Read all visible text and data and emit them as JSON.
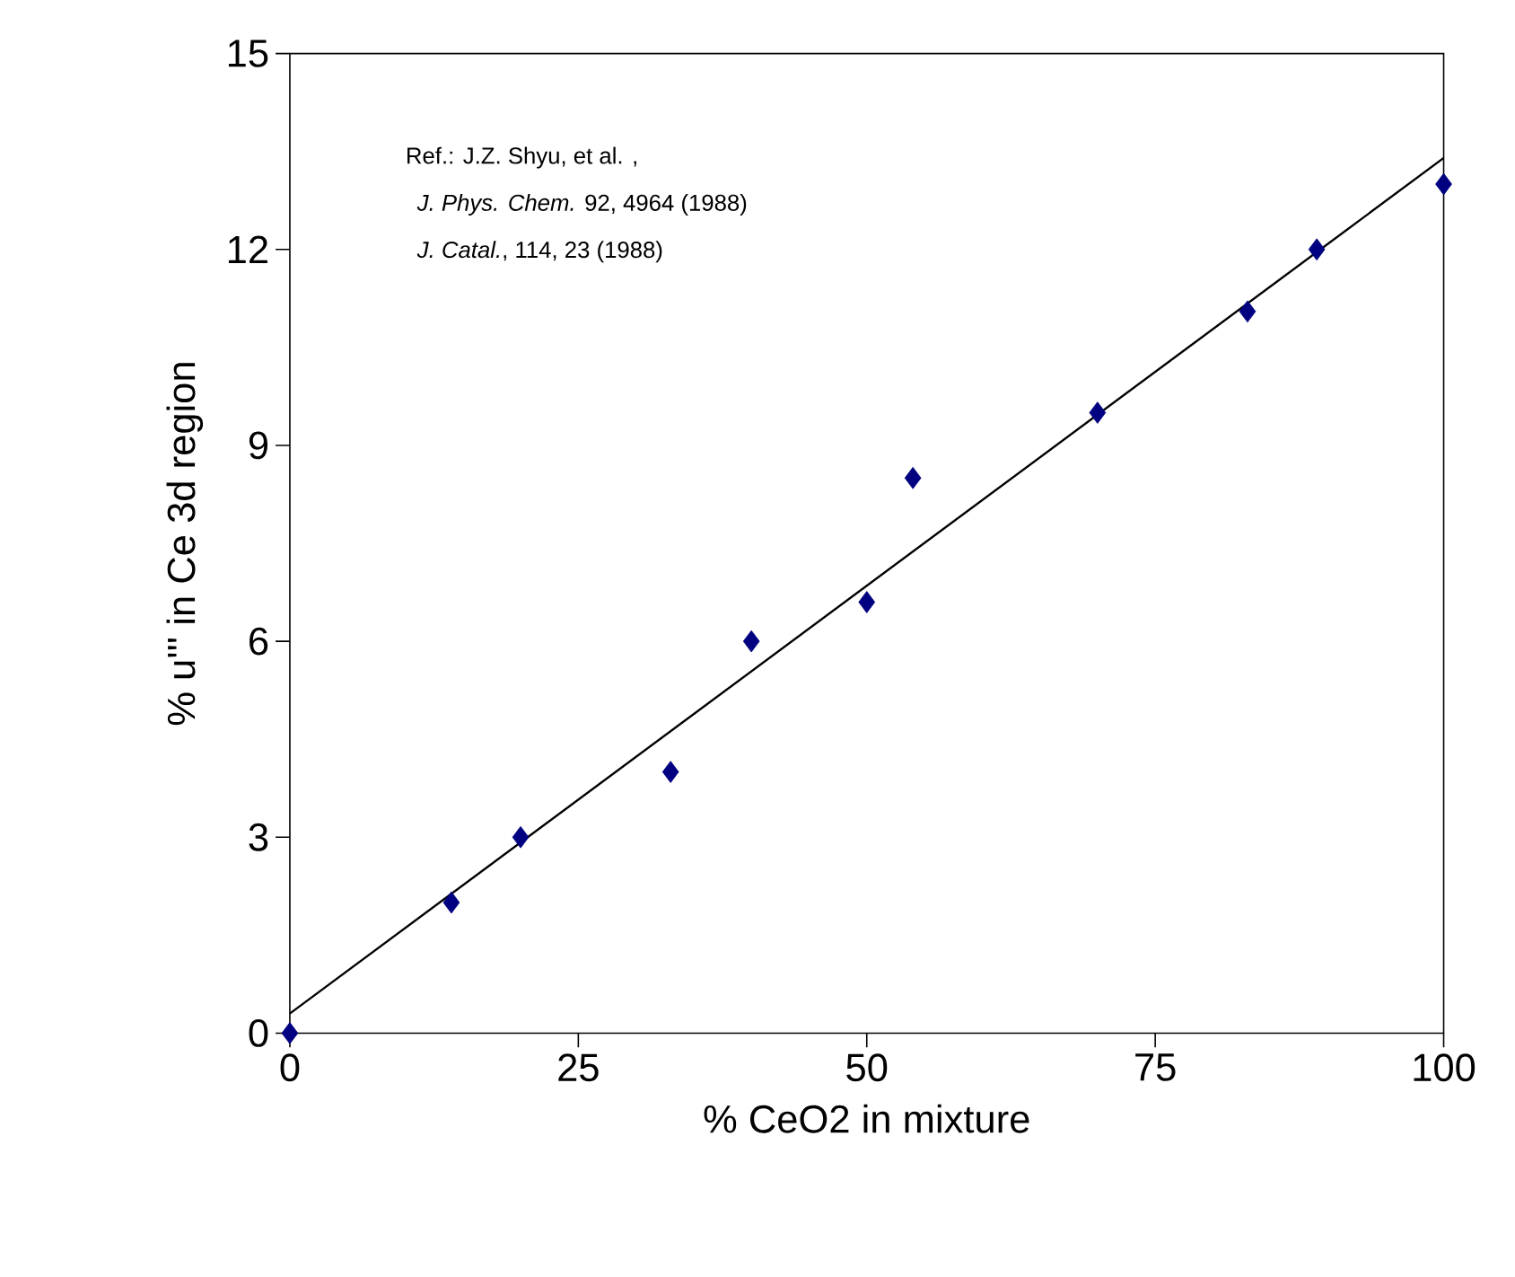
{
  "chart_data": {
    "type": "scatter",
    "xlabel": "% CeO2 in mixture",
    "ylabel": "% u''' in Ce 3d region",
    "xlim": [
      0,
      100
    ],
    "ylim": [
      0,
      15
    ],
    "xticks": [
      0,
      25,
      50,
      75,
      100
    ],
    "yticks": [
      0,
      3,
      6,
      9,
      12,
      15
    ],
    "grid": false,
    "marker": "diamond",
    "annotations": [
      "Ref.:  J.Z. Shyu, et al. ,",
      "*J. Phys. Chem.* 92, 4964 (1988)",
      "*J. Catal.*, 114, 23 (1988)"
    ],
    "series": [
      {
        "color": "#000080",
        "x": [
          0,
          14,
          20,
          33,
          40,
          50,
          54,
          70,
          83,
          89,
          100
        ],
        "values": [
          0,
          2,
          3,
          4,
          6,
          6.6,
          8.5,
          9.5,
          11.05,
          12,
          13
        ]
      },
      {
        "type": "line",
        "color": "#000000",
        "marker": "none",
        "line_style": "solid",
        "x": [
          0,
          100
        ],
        "values": [
          0.3,
          13.4
        ]
      }
    ]
  }
}
